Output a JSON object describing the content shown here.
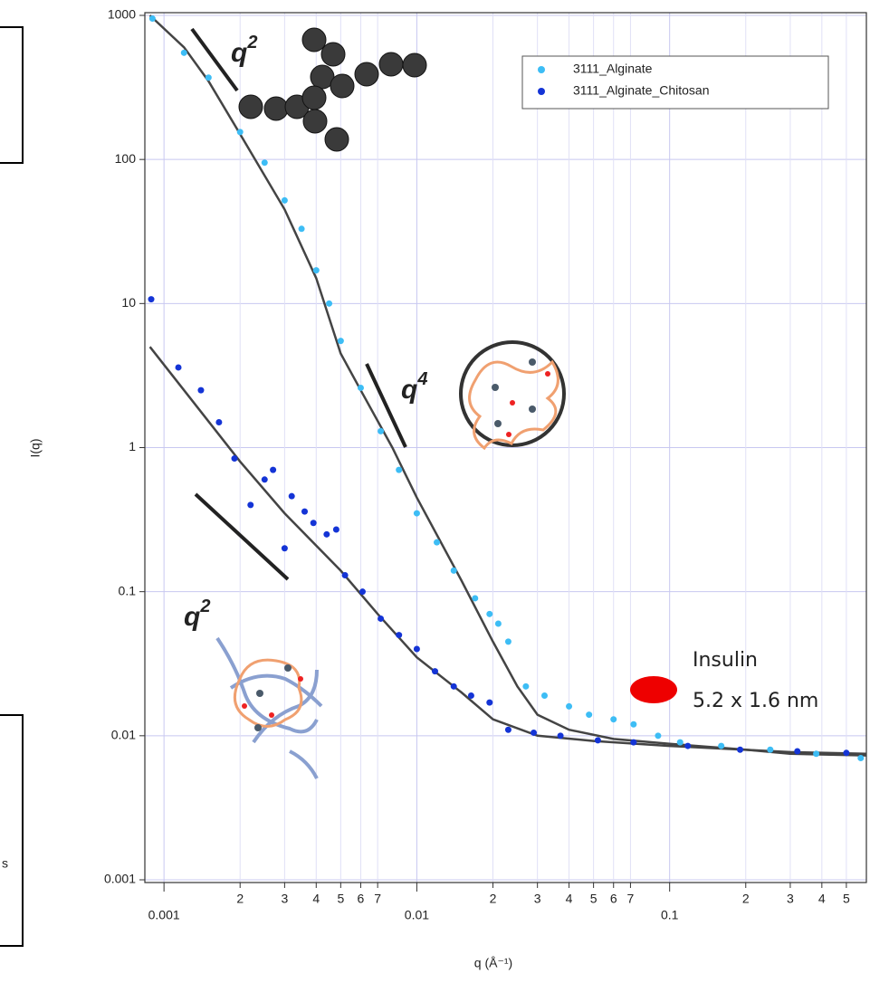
{
  "chart_data": {
    "type": "scatter",
    "log_x": true,
    "log_y": true,
    "grid": true,
    "xlabel": "q (Å⁻¹)",
    "ylabel": "I(q)",
    "xlim": [
      0.00084,
      0.6
    ],
    "ylim": [
      0.001,
      1000
    ],
    "xticks": [
      0.001,
      {
        "value": 0.002,
        "label": "2"
      },
      {
        "value": 0.003,
        "label": "3"
      },
      {
        "value": 0.004,
        "label": "4"
      },
      {
        "value": 0.005,
        "label": "5"
      },
      {
        "value": 0.006,
        "label": "6"
      },
      {
        "value": 0.007,
        "label": "7"
      },
      0.01,
      {
        "value": 0.02,
        "label": "2"
      },
      {
        "value": 0.03,
        "label": "3"
      },
      {
        "value": 0.04,
        "label": "4"
      },
      {
        "value": 0.05,
        "label": "5"
      },
      {
        "value": 0.06,
        "label": "6"
      },
      {
        "value": 0.07,
        "label": "7"
      },
      0.1,
      {
        "value": 0.2,
        "label": "2"
      },
      {
        "value": 0.3,
        "label": "3"
      },
      {
        "value": 0.4,
        "label": "4"
      },
      {
        "value": 0.5,
        "label": "5"
      }
    ],
    "yticks": [
      0.001,
      0.01,
      0.1,
      1,
      10,
      100,
      1000
    ],
    "legend": "top-right",
    "series": [
      {
        "name": "3111_Alginate",
        "color": "#3dbdf5",
        "x": [
          0.0009,
          0.0012,
          0.0015,
          0.002,
          0.0025,
          0.003,
          0.0035,
          0.004,
          0.0045,
          0.005,
          0.006,
          0.0072,
          0.0085,
          0.01,
          0.012,
          0.014,
          0.017,
          0.0194,
          0.021,
          0.023,
          0.027,
          0.032,
          0.04,
          0.048,
          0.06,
          0.072,
          0.09,
          0.11,
          0.16,
          0.25,
          0.38,
          0.57
        ],
        "values": [
          950,
          550,
          370,
          155,
          95,
          52,
          33,
          17,
          10,
          5.5,
          2.6,
          1.3,
          0.7,
          0.35,
          0.22,
          0.14,
          0.09,
          0.07,
          0.06,
          0.045,
          0.022,
          0.019,
          0.016,
          0.014,
          0.013,
          0.012,
          0.01,
          0.009,
          0.0085,
          0.008,
          0.0075,
          0.007
        ]
      },
      {
        "name": "3111_Alginate_Chitosan",
        "color": "#1434d6",
        "x": [
          0.00089,
          0.00114,
          0.0014,
          0.00165,
          0.0019,
          0.0022,
          0.0025,
          0.0027,
          0.003,
          0.0032,
          0.0036,
          0.0039,
          0.0044,
          0.0048,
          0.0052,
          0.0061,
          0.0072,
          0.0085,
          0.01,
          0.0118,
          0.014,
          0.0164,
          0.0194,
          0.023,
          0.029,
          0.037,
          0.052,
          0.072,
          0.118,
          0.19,
          0.32,
          0.5
        ],
        "values": [
          10.7,
          3.6,
          2.5,
          1.5,
          0.84,
          0.4,
          0.6,
          0.7,
          0.2,
          0.46,
          0.36,
          0.3,
          0.25,
          0.27,
          0.13,
          0.1,
          0.065,
          0.05,
          0.04,
          0.028,
          0.022,
          0.019,
          0.017,
          0.011,
          0.0105,
          0.01,
          0.0093,
          0.009,
          0.0085,
          0.008,
          0.0078,
          0.0076
        ]
      }
    ],
    "fits": [
      {
        "color": "#444444",
        "x": [
          0.00088,
          0.0012,
          0.0015,
          0.002,
          0.003,
          0.004,
          0.005,
          0.006,
          0.008,
          0.01,
          0.015,
          0.02,
          0.025,
          0.03,
          0.04,
          0.06,
          0.1,
          0.2,
          0.3,
          0.6
        ],
        "values": [
          1000,
          600,
          350,
          150,
          45,
          15,
          4.5,
          2.5,
          1.0,
          0.45,
          0.12,
          0.045,
          0.022,
          0.014,
          0.011,
          0.0095,
          0.0088,
          0.008,
          0.0075,
          0.0073
        ]
      },
      {
        "color": "#444444",
        "x": [
          0.00088,
          0.002,
          0.003,
          0.005,
          0.007,
          0.01,
          0.015,
          0.02,
          0.03,
          0.05,
          0.1,
          0.3,
          0.6
        ],
        "values": [
          5,
          0.8,
          0.35,
          0.14,
          0.07,
          0.035,
          0.02,
          0.013,
          0.01,
          0.0092,
          0.0085,
          0.0077,
          0.0075
        ]
      }
    ],
    "annotations": [
      {
        "text": "q",
        "sup": "2"
      },
      {
        "text": "q",
        "sup": "4"
      },
      {
        "text": "q",
        "sup": "2"
      },
      {
        "text": "Insulin"
      },
      {
        "text": "5.2 x 1.6 nm"
      }
    ]
  },
  "side_text": "s"
}
